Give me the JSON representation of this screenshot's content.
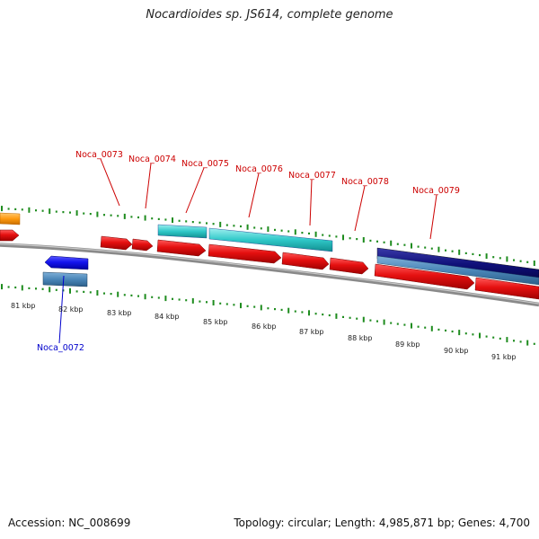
{
  "title": "Nocardioides sp. JS614, complete genome",
  "footer": {
    "accession": "Accession: NC_008699",
    "summary": "Topology: circular; Length: 4,985,871 bp; Genes: 4,700"
  },
  "kbp_labels": [
    "81 kbp",
    "82 kbp",
    "83 kbp",
    "84 kbp",
    "85 kbp",
    "86 kbp",
    "87 kbp",
    "88 kbp",
    "89 kbp",
    "90 kbp",
    "91 kbp"
  ],
  "gene_labels": {
    "forward": [
      "Noca_0073",
      "Noca_0074",
      "Noca_0075",
      "Noca_0076",
      "Noca_0077",
      "Noca_0078",
      "Noca_0079"
    ],
    "reverse": [
      "Noca_0072"
    ]
  },
  "colors": {
    "forward_gene": "#e31414",
    "reverse_gene": "#1010ee",
    "cds_feature": "#3aa0b8",
    "rrna_feature": "#2fc6c6",
    "dark_feature": "#10107a",
    "orange_feature": "#ff9a10",
    "backbone": "#8a8a8a",
    "tick": "#1e8c1e",
    "forward_label": "#cc0000",
    "reverse_label": "#0000cc"
  }
}
